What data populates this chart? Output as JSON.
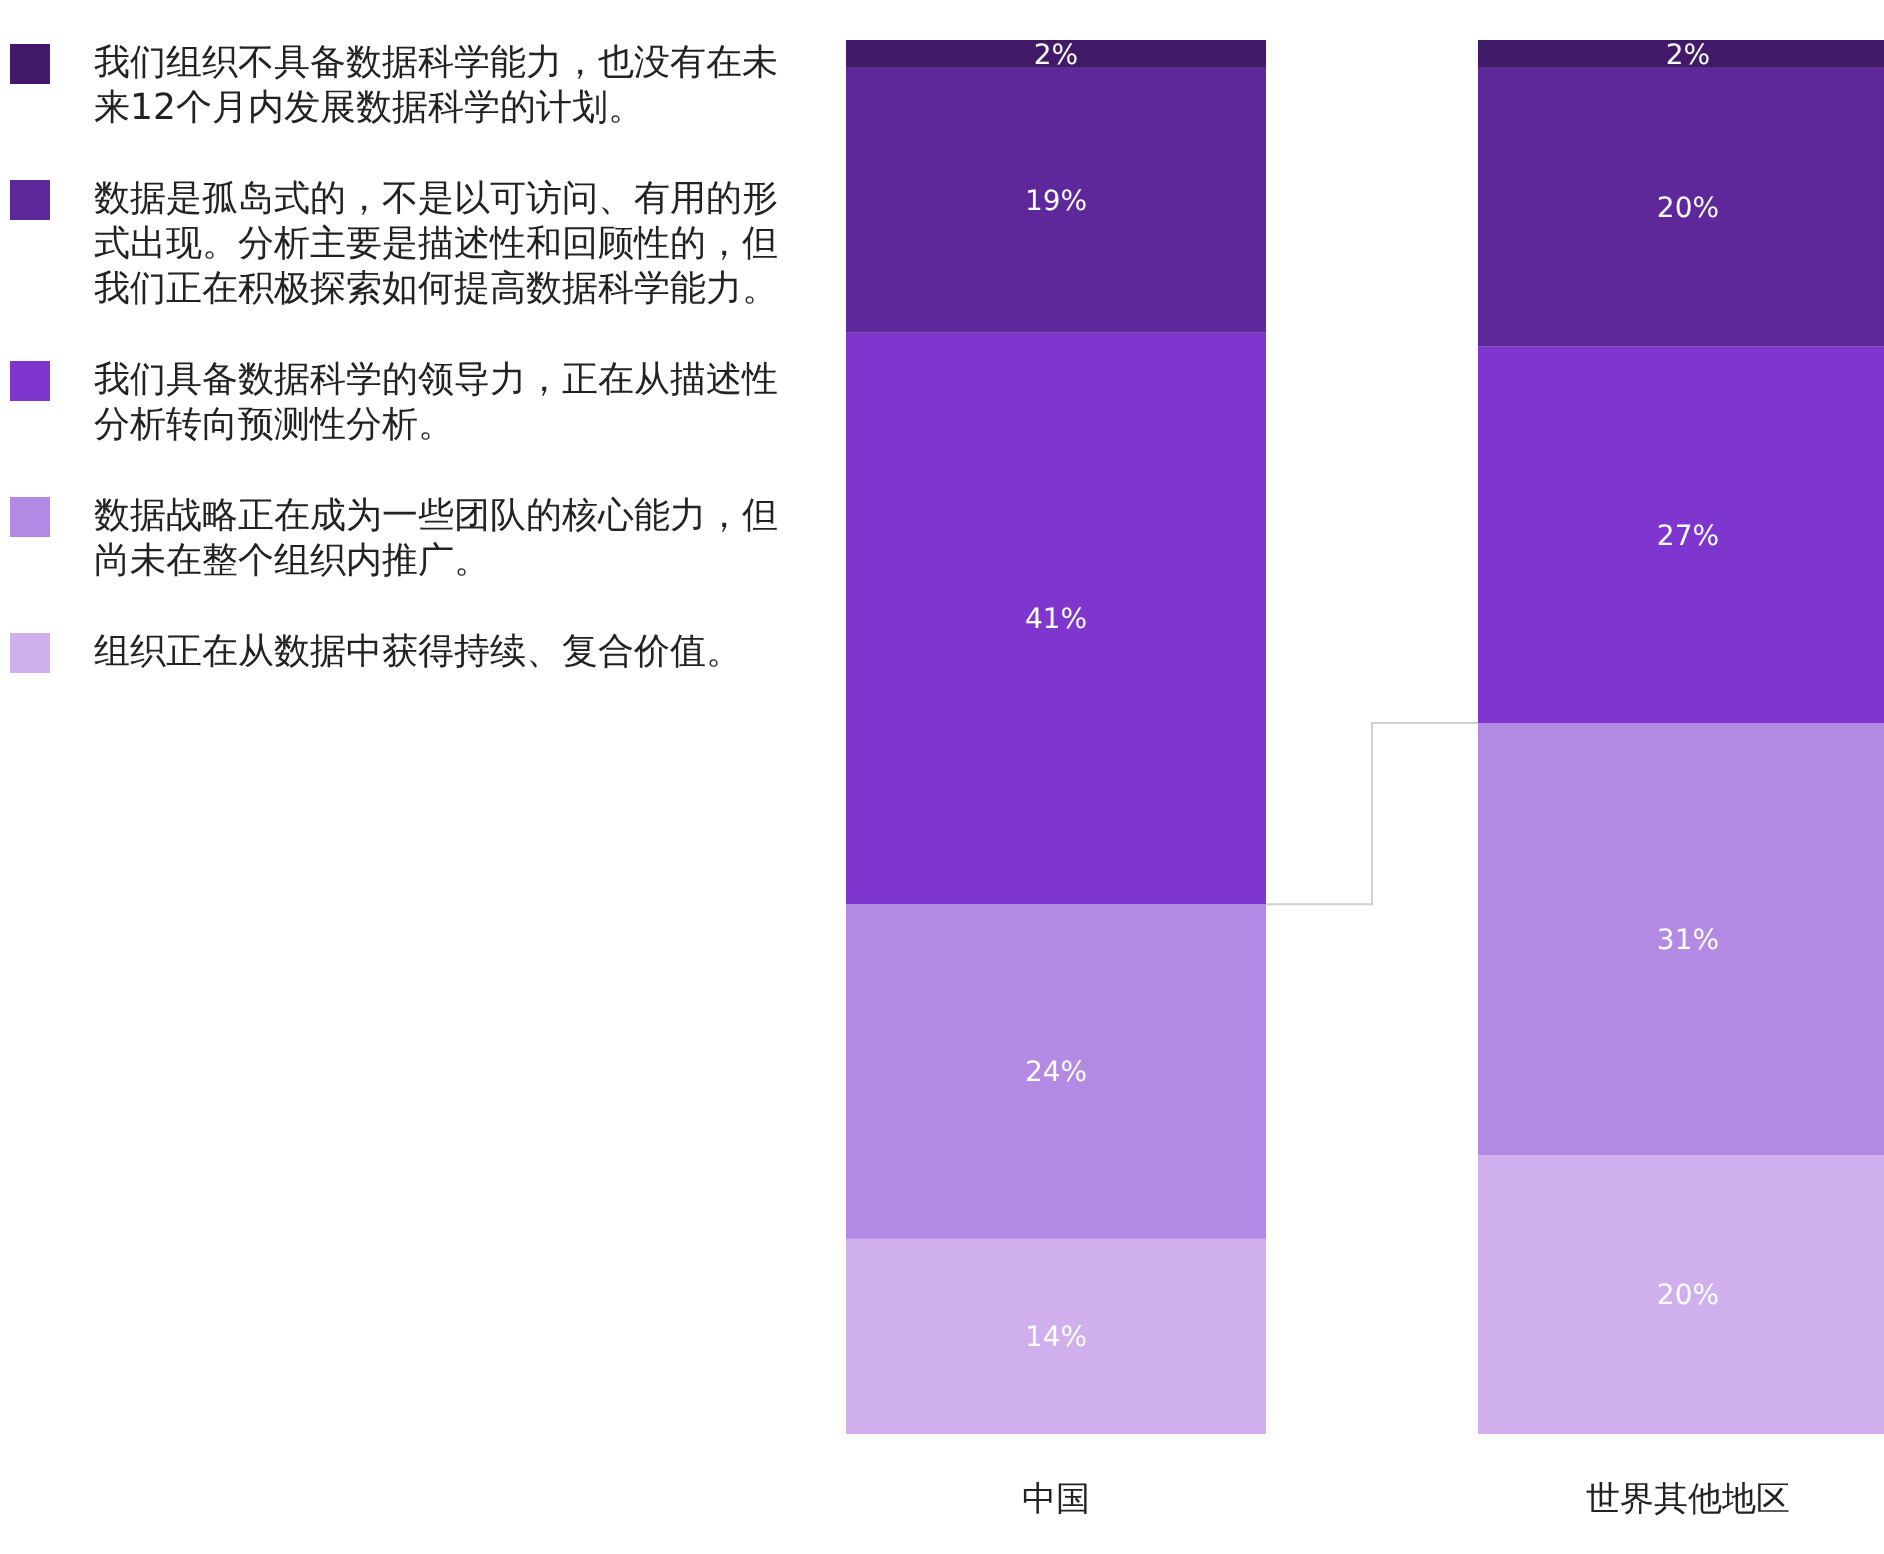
{
  "chart_data": {
    "type": "bar",
    "stacked": true,
    "legend": "left",
    "categories": [
      "中国",
      "世界其他地区"
    ],
    "series": [
      {
        "name": "组织正在从数据中获得持续、复合价值。",
        "color": "#cfb0ec",
        "values": [
          14,
          20
        ],
        "value_labels": [
          "14%",
          "20%"
        ]
      },
      {
        "name": "数据战略正在成为一些团队的核心能力，但尚未在整个组织内推广。",
        "color": "#b38ae3",
        "values": [
          24,
          31
        ],
        "value_labels": [
          "24%",
          "31%"
        ]
      },
      {
        "name": "我们具备数据科学的领导力，正在从描述性分析转向预测性分析。",
        "color": "#7e36cf",
        "values": [
          41,
          27
        ],
        "value_labels": [
          "41%",
          "27%"
        ]
      },
      {
        "name": "数据是孤岛式的，不是以可访问、有用的形式出现。分析主要是描述性和回顾性的，但我们正在积极探索如何提高数据科学能力。",
        "color": "#5e289b",
        "values": [
          19,
          20
        ],
        "value_labels": [
          "19%",
          "20%"
        ]
      },
      {
        "name": "我们组织不具备数据科学能力，也没有在未来12个月内发展数据科学的计划。",
        "color": "#421a6a",
        "values": [
          2,
          2
        ],
        "value_labels": [
          "2%",
          "2%"
        ]
      }
    ]
  }
}
